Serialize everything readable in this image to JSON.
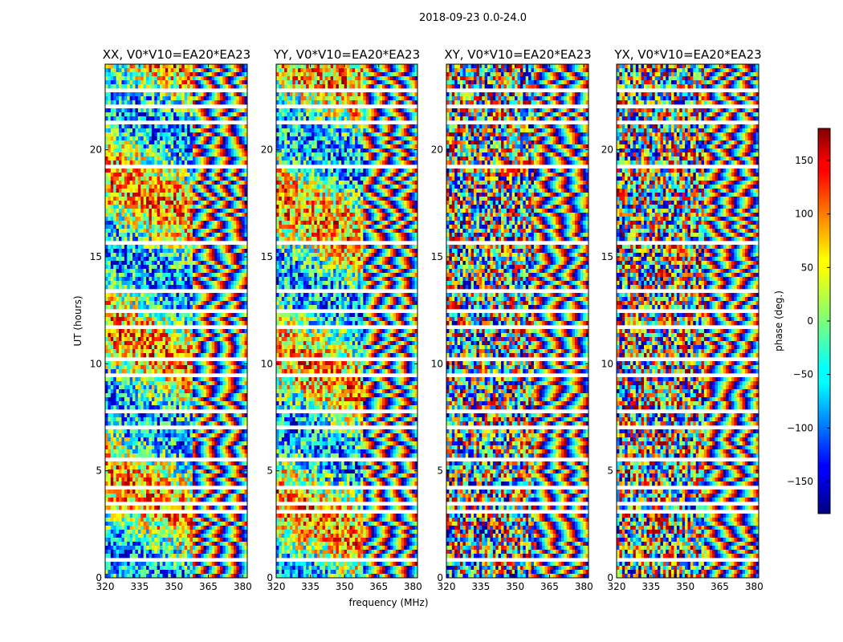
{
  "chart_data": {
    "type": "heatmap",
    "title": "2018-09-23 0.0-24.0",
    "xlabel": "frequency (MHz)",
    "ylabel": "UT (hours)",
    "colorbar_label": "phase (deg.)",
    "colormap": "jet",
    "xlim": [
      320,
      382
    ],
    "ylim": [
      0,
      24
    ],
    "xticks": [
      320,
      335,
      350,
      365,
      380
    ],
    "yticks": [
      0,
      5,
      10,
      15,
      20
    ],
    "colorbar_range": [
      -180,
      180
    ],
    "colorbar_ticks": [
      -150,
      -100,
      -50,
      0,
      50,
      100,
      150
    ],
    "colorbar_tick_labels": [
      "−150",
      "−100",
      "−50",
      "0",
      "50",
      "100",
      "150"
    ],
    "panels": [
      {
        "title": "XX, V0*V10=EA20*EA23",
        "pol": "XX"
      },
      {
        "title": "YY, V0*V10=EA20*EA23",
        "pol": "YY"
      },
      {
        "title": "XY, V0*V10=EA20*EA23",
        "pol": "XY"
      },
      {
        "title": "YX, V0*V10=EA20*EA23",
        "pol": "YX"
      }
    ],
    "gap_bands_hours": [
      [
        0.8,
        0.95
      ],
      [
        1.6,
        1.75
      ],
      [
        2.55,
        2.7
      ],
      [
        3.0,
        3.15
      ],
      [
        3.35,
        3.5
      ],
      [
        4.1,
        4.25
      ],
      [
        5.45,
        5.55
      ],
      [
        6.3,
        6.45
      ],
      [
        7.0,
        7.2
      ],
      [
        7.7,
        7.85
      ],
      [
        9.4,
        9.5
      ],
      [
        10.2,
        10.35
      ],
      [
        11.7,
        11.8
      ],
      [
        12.45,
        12.55
      ],
      [
        13.35,
        13.45
      ],
      [
        14.35,
        14.5
      ],
      [
        15.55,
        15.7
      ],
      [
        17.0,
        17.15
      ],
      [
        17.6,
        17.7
      ],
      [
        18.3,
        18.4
      ],
      [
        19.2,
        19.3
      ],
      [
        21.2,
        21.35
      ],
      [
        22.0,
        22.15
      ],
      [
        22.7,
        22.85
      ],
      [
        23.35,
        23.5
      ]
    ]
  }
}
